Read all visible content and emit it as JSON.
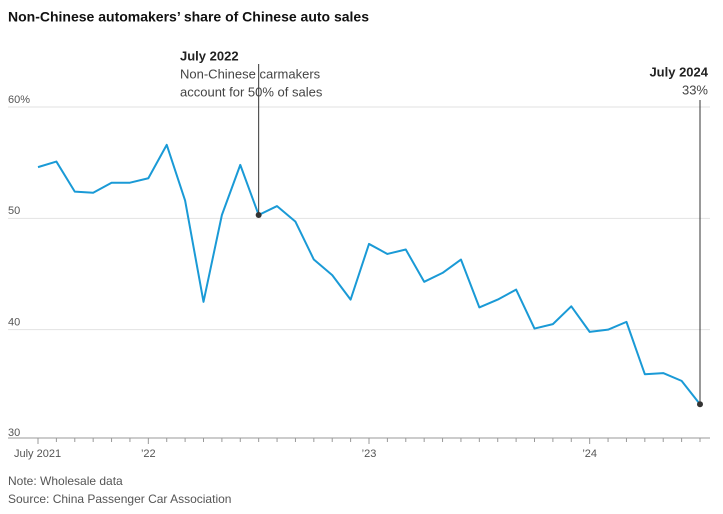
{
  "chart_data": {
    "type": "line",
    "title": "Non-Chinese automakers’ share of Chinese auto sales",
    "categories": [
      "July 2021",
      null,
      null,
      null,
      null,
      null,
      "’22",
      null,
      null,
      null,
      null,
      null,
      null,
      null,
      null,
      null,
      null,
      null,
      "’23",
      null,
      null,
      null,
      null,
      null,
      null,
      null,
      null,
      null,
      null,
      null,
      "’24",
      null,
      null,
      null,
      null,
      null,
      null
    ],
    "series": [
      {
        "name": "Non-Chinese automakers’ share",
        "color": "#1a9ad6",
        "values": [
          54.6,
          55.1,
          52.4,
          52.3,
          53.2,
          53.2,
          53.6,
          56.6,
          51.6,
          42.5,
          50.3,
          54.8,
          50.3,
          51.1,
          49.7,
          46.3,
          44.9,
          42.7,
          47.7,
          46.8,
          47.2,
          44.3,
          45.1,
          46.3,
          42.0,
          42.7,
          43.6,
          40.1,
          40.5,
          42.1,
          39.8,
          40.0,
          40.7,
          36.0,
          36.1,
          35.4,
          33.3
        ]
      }
    ],
    "ylim": [
      30,
      60
    ],
    "yticks": [
      {
        "value": 60,
        "label": "60%"
      },
      50,
      40,
      30
    ],
    "grid": true,
    "annotations": [
      {
        "title": "July 2022",
        "lines": [
          "Non-Chinese carmakers",
          "account for 50% of sales"
        ]
      },
      {
        "title": "July 2024",
        "lines": [
          "33%"
        ]
      }
    ],
    "note": "Note: Wholesale data",
    "source": "Source: China Passenger Car Association"
  }
}
